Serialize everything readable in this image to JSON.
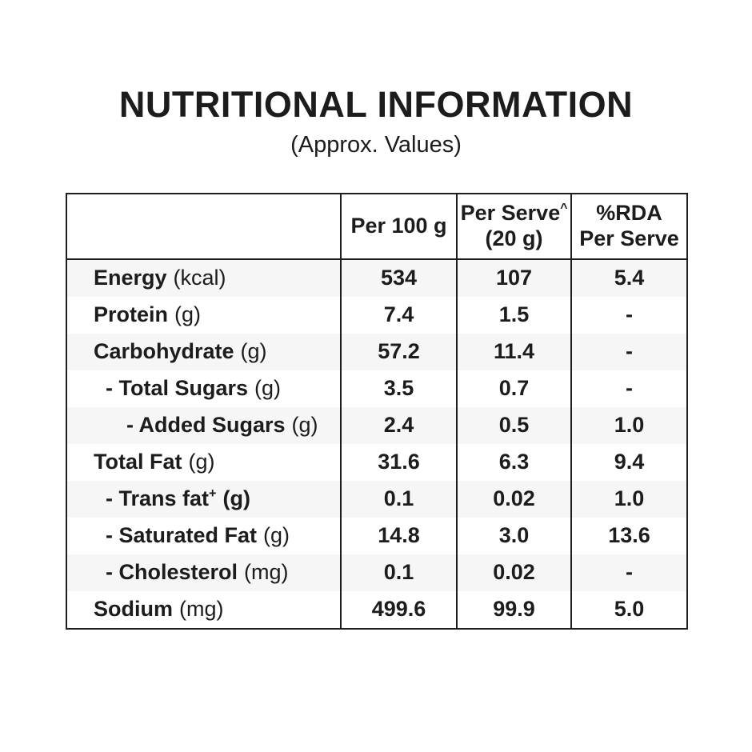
{
  "title": "NUTRITIONAL INFORMATION",
  "subtitle": "(Approx. Values)",
  "table": {
    "header": {
      "col0": "",
      "col1": "Per 100 g",
      "col2_line1": "Per Serve",
      "col2_sup": "^",
      "col2_line2": "(20 g)",
      "col3_line1": "%RDA",
      "col3_line2": "Per Serve"
    },
    "rows": [
      {
        "name": "Energy",
        "sup": "",
        "unit": "(kcal)",
        "indent": 0,
        "unit_bold": false,
        "per_100g": "534",
        "per_serve": "107",
        "rda_per_serve": "5.4"
      },
      {
        "name": "Protein",
        "sup": "",
        "unit": "(g)",
        "indent": 0,
        "unit_bold": false,
        "per_100g": "7.4",
        "per_serve": "1.5",
        "rda_per_serve": "-"
      },
      {
        "name": "Carbohydrate",
        "sup": "",
        "unit": "(g)",
        "indent": 0,
        "unit_bold": false,
        "per_100g": "57.2",
        "per_serve": "11.4",
        "rda_per_serve": "-"
      },
      {
        "name": "- Total Sugars",
        "sup": "",
        "unit": "(g)",
        "indent": 1,
        "unit_bold": false,
        "per_100g": "3.5",
        "per_serve": "0.7",
        "rda_per_serve": "-"
      },
      {
        "name": "- Added Sugars",
        "sup": "",
        "unit": "(g)",
        "indent": 2,
        "unit_bold": false,
        "per_100g": "2.4",
        "per_serve": "0.5",
        "rda_per_serve": "1.0"
      },
      {
        "name": "Total Fat",
        "sup": "",
        "unit": "(g)",
        "indent": 0,
        "unit_bold": false,
        "per_100g": "31.6",
        "per_serve": "6.3",
        "rda_per_serve": "9.4"
      },
      {
        "name": "- Trans fat",
        "sup": "+",
        "unit": "(g)",
        "indent": 1,
        "unit_bold": true,
        "per_100g": "0.1",
        "per_serve": "0.02",
        "rda_per_serve": "1.0"
      },
      {
        "name": "- Saturated Fat",
        "sup": "",
        "unit": "(g)",
        "indent": 1,
        "unit_bold": false,
        "per_100g": "14.8",
        "per_serve": "3.0",
        "rda_per_serve": "13.6"
      },
      {
        "name": "- Cholesterol",
        "sup": "",
        "unit": "(mg)",
        "indent": 1,
        "unit_bold": false,
        "per_100g": "0.1",
        "per_serve": "0.02",
        "rda_per_serve": "-"
      },
      {
        "name": "Sodium",
        "sup": "",
        "unit": "(mg)",
        "indent": 0,
        "unit_bold": false,
        "per_100g": "499.6",
        "per_serve": "99.9",
        "rda_per_serve": "5.0"
      }
    ]
  },
  "colors": {
    "text": "#1c1c1e",
    "border": "#1e1e1e",
    "row_alt_bg": "#f6f6f6",
    "bg": "#ffffff"
  }
}
